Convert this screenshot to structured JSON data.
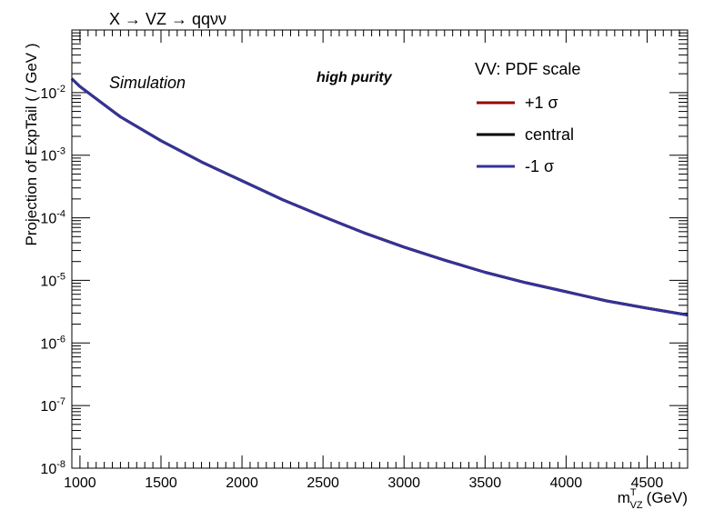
{
  "chart_data": {
    "type": "line",
    "title": "X → VZ → qqνν",
    "xlabel": "m",
    "xlabel_sup": "T",
    "xlabel_sub": "VZ",
    "xlabel_unit": "(GeV)",
    "ylabel": "Projection of ExpTail (  / GeV )",
    "xlim": [
      950,
      4750
    ],
    "ylim": [
      1e-08,
      0.1
    ],
    "yscale": "log",
    "grid": false,
    "x_ticks": [
      1000,
      1500,
      2000,
      2500,
      3000,
      3500,
      4000,
      4500
    ],
    "x_tick_labels": [
      "1000",
      "1500",
      "2000",
      "2500",
      "3000",
      "3500",
      "4000",
      "4500"
    ],
    "y_tick_exponents": [
      -8,
      -7,
      -6,
      -5,
      -4,
      -3,
      -2
    ],
    "y_tick_base": "10",
    "annotations": {
      "simulation": "Simulation",
      "category": "high purity"
    },
    "legend": {
      "title": "VV: PDF scale",
      "placement": "top-right",
      "entries": [
        {
          "label": "+1",
          "symbol": "σ",
          "color": "#990000"
        },
        {
          "label": "central",
          "symbol": "",
          "color": "#000000"
        },
        {
          "label": "-1",
          "symbol": "σ",
          "color": "#333399"
        }
      ]
    },
    "x": [
      950,
      1000,
      1250,
      1500,
      1750,
      2000,
      2250,
      2500,
      2750,
      3000,
      3250,
      3500,
      3750,
      4000,
      4250,
      4500,
      4750
    ],
    "series": [
      {
        "name": "+1 σ",
        "color": "#990000",
        "values": [
          0.0166,
          0.0125,
          0.0041,
          0.0017,
          0.00078,
          0.00039,
          0.000195,
          0.000105,
          5.8e-05,
          3.4e-05,
          2.1e-05,
          1.35e-05,
          9.2e-06,
          6.6e-06,
          4.7e-06,
          3.6e-06,
          2.8e-06
        ]
      },
      {
        "name": "central",
        "color": "#000000",
        "values": [
          0.0166,
          0.0125,
          0.0041,
          0.0017,
          0.00078,
          0.00039,
          0.000195,
          0.000105,
          5.8e-05,
          3.4e-05,
          2.1e-05,
          1.35e-05,
          9.2e-06,
          6.6e-06,
          4.7e-06,
          3.6e-06,
          2.8e-06
        ]
      },
      {
        "name": "-1 σ",
        "color": "#333399",
        "values": [
          0.0166,
          0.0125,
          0.0041,
          0.0017,
          0.00078,
          0.00039,
          0.000195,
          0.000105,
          5.8e-05,
          3.4e-05,
          2.1e-05,
          1.35e-05,
          9.2e-06,
          6.6e-06,
          4.7e-06,
          3.6e-06,
          2.8e-06
        ]
      }
    ]
  }
}
